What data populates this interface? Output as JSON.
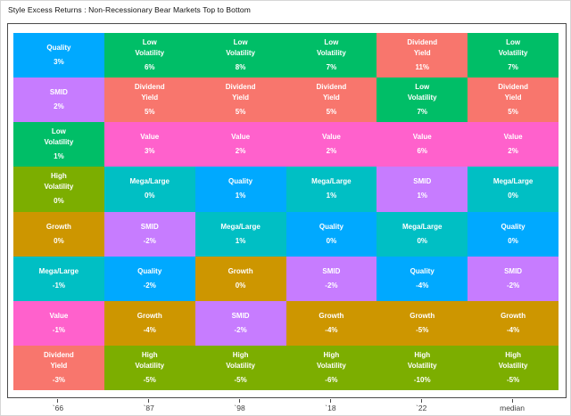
{
  "title": "Style Excess Returns : Non-Recessionary Bear Markets Top to Bottom",
  "chart_data": {
    "type": "heatmap",
    "title": "Style Excess Returns : Non-Recessionary Bear Markets Top to Bottom",
    "description": "Ranked tile chart: each column is a bear-market year, tiles sorted top to bottom by style excess return",
    "x_tick_labels": [
      "`66",
      "`87",
      "`98",
      "`18",
      "`22",
      "median"
    ],
    "legend": "none",
    "grid": "off",
    "style_colors": {
      "Quality": "#00A9FF",
      "SMID": "#C77CFF",
      "Low Volatility": "#00BE67",
      "High Volatility": "#7CAE00",
      "Growth": "#CD9600",
      "Mega/Large": "#00BFC4",
      "Value": "#FF61CC",
      "Dividend Yield": "#F8766D"
    },
    "text_color": "#ffffff",
    "columns": [
      {
        "label": "`66",
        "cells": [
          {
            "style": "Quality",
            "value": "3%"
          },
          {
            "style": "SMID",
            "value": "2%"
          },
          {
            "style": "Low Volatility",
            "value": "1%"
          },
          {
            "style": "High Volatility",
            "value": "0%"
          },
          {
            "style": "Growth",
            "value": "0%"
          },
          {
            "style": "Mega/Large",
            "value": "-1%"
          },
          {
            "style": "Value",
            "value": "-1%"
          },
          {
            "style": "Dividend Yield",
            "value": "-3%"
          }
        ]
      },
      {
        "label": "`87",
        "cells": [
          {
            "style": "Low Volatility",
            "value": "6%"
          },
          {
            "style": "Dividend Yield",
            "value": "5%"
          },
          {
            "style": "Value",
            "value": "3%"
          },
          {
            "style": "Mega/Large",
            "value": "0%"
          },
          {
            "style": "SMID",
            "value": "-2%"
          },
          {
            "style": "Quality",
            "value": "-2%"
          },
          {
            "style": "Growth",
            "value": "-4%"
          },
          {
            "style": "High Volatility",
            "value": "-5%"
          }
        ]
      },
      {
        "label": "`98",
        "cells": [
          {
            "style": "Low Volatility",
            "value": "8%"
          },
          {
            "style": "Dividend Yield",
            "value": "5%"
          },
          {
            "style": "Value",
            "value": "2%"
          },
          {
            "style": "Quality",
            "value": "1%"
          },
          {
            "style": "Mega/Large",
            "value": "1%"
          },
          {
            "style": "Growth",
            "value": "0%"
          },
          {
            "style": "SMID",
            "value": "-2%"
          },
          {
            "style": "High Volatility",
            "value": "-5%"
          }
        ]
      },
      {
        "label": "`18",
        "cells": [
          {
            "style": "Low Volatility",
            "value": "7%"
          },
          {
            "style": "Dividend Yield",
            "value": "5%"
          },
          {
            "style": "Value",
            "value": "2%"
          },
          {
            "style": "Mega/Large",
            "value": "1%"
          },
          {
            "style": "Quality",
            "value": "0%"
          },
          {
            "style": "SMID",
            "value": "-2%"
          },
          {
            "style": "Growth",
            "value": "-4%"
          },
          {
            "style": "High Volatility",
            "value": "-6%"
          }
        ]
      },
      {
        "label": "`22",
        "cells": [
          {
            "style": "Dividend Yield",
            "value": "11%"
          },
          {
            "style": "Low Volatility",
            "value": "7%"
          },
          {
            "style": "Value",
            "value": "6%"
          },
          {
            "style": "SMID",
            "value": "1%"
          },
          {
            "style": "Mega/Large",
            "value": "0%"
          },
          {
            "style": "Quality",
            "value": "-4%"
          },
          {
            "style": "Growth",
            "value": "-5%"
          },
          {
            "style": "High Volatility",
            "value": "-10%"
          }
        ]
      },
      {
        "label": "median",
        "cells": [
          {
            "style": "Low Volatility",
            "value": "7%"
          },
          {
            "style": "Dividend Yield",
            "value": "5%"
          },
          {
            "style": "Value",
            "value": "2%"
          },
          {
            "style": "Mega/Large",
            "value": "0%"
          },
          {
            "style": "Quality",
            "value": "0%"
          },
          {
            "style": "SMID",
            "value": "-2%"
          },
          {
            "style": "Growth",
            "value": "-4%"
          },
          {
            "style": "High Volatility",
            "value": "-5%"
          }
        ]
      }
    ]
  }
}
